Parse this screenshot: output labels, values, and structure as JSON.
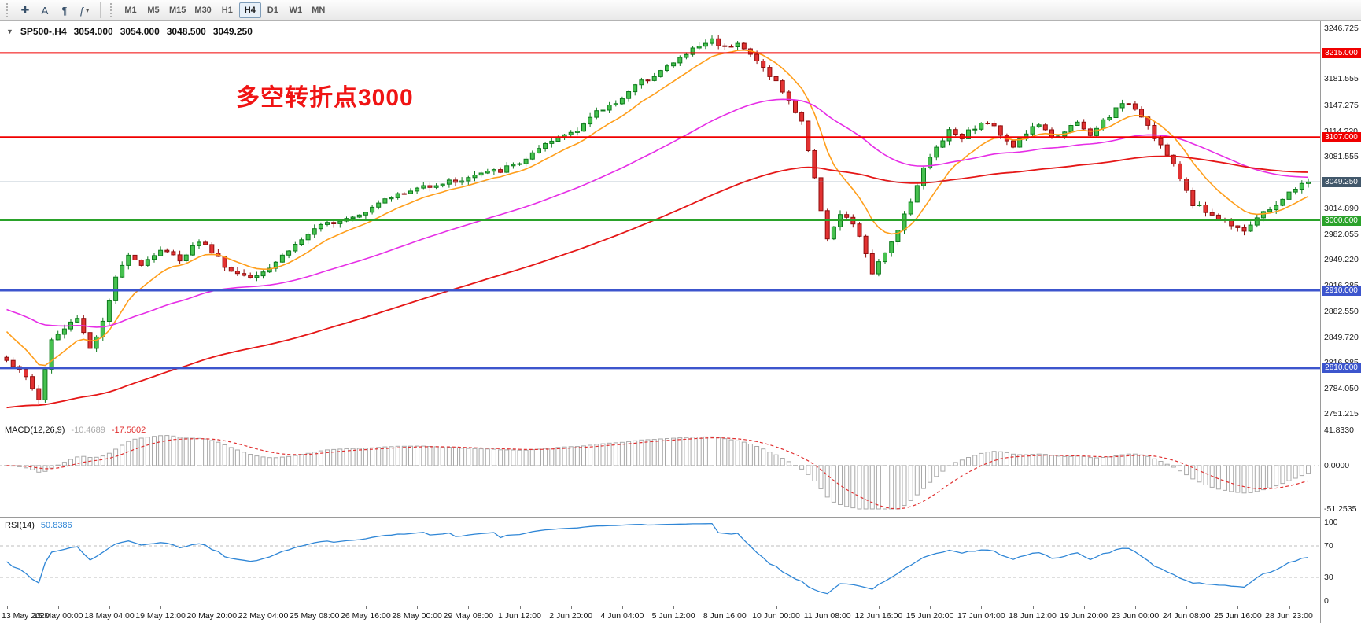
{
  "toolbar": {
    "tools": [
      {
        "name": "crosshair-tool",
        "glyph": "✚",
        "dropdown": false
      },
      {
        "name": "text-tool",
        "glyph": "A",
        "dropdown": false
      },
      {
        "name": "text-label-tool",
        "glyph": "¶",
        "dropdown": false
      },
      {
        "name": "indicators-tool",
        "glyph": "ƒ",
        "dropdown": true
      }
    ],
    "dropdown_glyph": "▾",
    "timeframes": [
      "M1",
      "M5",
      "M15",
      "M30",
      "H1",
      "H4",
      "D1",
      "W1",
      "MN"
    ],
    "active_timeframe": "H4"
  },
  "chart": {
    "symbol_header": {
      "icon": "▼",
      "symbol": "SP500-,H4",
      "open": "3054.000",
      "high": "3054.000",
      "low": "3048.500",
      "close": "3049.250"
    },
    "annotation": {
      "text": "多空转折点3000",
      "color": "#f01414"
    },
    "price_axis": {
      "min": 2751.215,
      "max": 3246.725,
      "labels": [
        {
          "text": "3246.725",
          "value": 3246.725
        },
        {
          "text": "3181.555",
          "value": 3181.555
        },
        {
          "text": "3147.275",
          "value": 3147.275
        },
        {
          "text": "3114.220",
          "value": 3114.22
        },
        {
          "text": "3081.555",
          "value": 3081.555
        },
        {
          "text": "3014.890",
          "value": 3014.89
        },
        {
          "text": "2982.055",
          "value": 2982.055
        },
        {
          "text": "2949.220",
          "value": 2949.22
        },
        {
          "text": "2916.385",
          "value": 2916.385
        },
        {
          "text": "2882.550",
          "value": 2882.55
        },
        {
          "text": "2849.720",
          "value": 2849.72
        },
        {
          "text": "2816.885",
          "value": 2816.885
        },
        {
          "text": "2784.050",
          "value": 2784.05
        },
        {
          "text": "2751.215",
          "value": 2751.215
        }
      ]
    },
    "levels": [
      {
        "label": "3215.000",
        "value": 3215.0,
        "color": "#f00000",
        "width": 2
      },
      {
        "label": "3107.000",
        "value": 3107.0,
        "color": "#f00000",
        "width": 2
      },
      {
        "label": "3000.000",
        "value": 3000.0,
        "color": "#2aa22a",
        "width": 2
      },
      {
        "label": "2910.000",
        "value": 2910.0,
        "color": "#3c55cd",
        "width": 3
      },
      {
        "label": "2810.000",
        "value": 2810.0,
        "color": "#3c55cd",
        "width": 3
      }
    ],
    "current_price": {
      "label": "3049.250",
      "value": 3049.25,
      "line_color": "#7e95a8",
      "badge_color": "#42586b"
    },
    "candles": {
      "count": 204,
      "noise": 7,
      "last_close": 3049.25,
      "up_fill": "#46c14f",
      "up_border": "#0d7a1c",
      "down_fill": "#e23232",
      "down_border": "#8f0e0e"
    },
    "price_path": [
      [
        0,
        2822
      ],
      [
        3,
        2798
      ],
      [
        5,
        2770
      ],
      [
        7,
        2846
      ],
      [
        9,
        2860
      ],
      [
        11,
        2876
      ],
      [
        13,
        2836
      ],
      [
        15,
        2868
      ],
      [
        17,
        2924
      ],
      [
        19,
        2958
      ],
      [
        21,
        2944
      ],
      [
        24,
        2962
      ],
      [
        27,
        2950
      ],
      [
        30,
        2974
      ],
      [
        32,
        2960
      ],
      [
        35,
        2934
      ],
      [
        38,
        2928
      ],
      [
        41,
        2940
      ],
      [
        44,
        2962
      ],
      [
        47,
        2982
      ],
      [
        50,
        2996
      ],
      [
        53,
        3004
      ],
      [
        56,
        3012
      ],
      [
        59,
        3030
      ],
      [
        62,
        3034
      ],
      [
        65,
        3044
      ],
      [
        68,
        3048
      ],
      [
        71,
        3052
      ],
      [
        74,
        3060
      ],
      [
        77,
        3064
      ],
      [
        80,
        3074
      ],
      [
        83,
        3090
      ],
      [
        86,
        3106
      ],
      [
        89,
        3118
      ],
      [
        92,
        3138
      ],
      [
        95,
        3152
      ],
      [
        98,
        3172
      ],
      [
        101,
        3188
      ],
      [
        104,
        3202
      ],
      [
        107,
        3220
      ],
      [
        110,
        3232
      ],
      [
        112,
        3222
      ],
      [
        114,
        3230
      ],
      [
        116,
        3212
      ],
      [
        118,
        3196
      ],
      [
        120,
        3178
      ],
      [
        122,
        3152
      ],
      [
        124,
        3128
      ],
      [
        126,
        3052
      ],
      [
        128,
        2978
      ],
      [
        130,
        3006
      ],
      [
        132,
        2996
      ],
      [
        134,
        2958
      ],
      [
        135,
        2932
      ],
      [
        137,
        2956
      ],
      [
        139,
        2990
      ],
      [
        141,
        3026
      ],
      [
        143,
        3066
      ],
      [
        145,
        3094
      ],
      [
        147,
        3116
      ],
      [
        149,
        3108
      ],
      [
        151,
        3120
      ],
      [
        153,
        3126
      ],
      [
        155,
        3112
      ],
      [
        157,
        3096
      ],
      [
        159,
        3112
      ],
      [
        161,
        3124
      ],
      [
        163,
        3104
      ],
      [
        165,
        3116
      ],
      [
        167,
        3124
      ],
      [
        169,
        3108
      ],
      [
        171,
        3128
      ],
      [
        173,
        3142
      ],
      [
        175,
        3152
      ],
      [
        177,
        3136
      ],
      [
        179,
        3108
      ],
      [
        181,
        3084
      ],
      [
        183,
        3054
      ],
      [
        185,
        3022
      ],
      [
        187,
        3012
      ],
      [
        189,
        3002
      ],
      [
        191,
        2996
      ],
      [
        193,
        2988
      ],
      [
        195,
        3002
      ],
      [
        197,
        3014
      ],
      [
        199,
        3028
      ],
      [
        201,
        3040
      ],
      [
        203,
        3049.25
      ]
    ],
    "moving_averages": [
      {
        "name": "ma-fast-orange",
        "period": 10,
        "init": 2865,
        "color": "#ff9e1b",
        "width": 1.6
      },
      {
        "name": "ma-mid-magenta",
        "period": 48,
        "init": 2888,
        "color": "#e62ee6",
        "width": 1.6
      },
      {
        "name": "ma-slow-red",
        "period": 110,
        "init": 2758,
        "color": "#e51717",
        "width": 1.8
      }
    ]
  },
  "macd": {
    "name": "MACD(12,26,9)",
    "value_main": "-10.4689",
    "value_signal": "-17.5602",
    "axis": [
      {
        "text": "41.8330",
        "value": 41.833
      },
      {
        "text": "0.0000",
        "value": 0
      },
      {
        "text": "-51.2535",
        "value": -51.2535
      }
    ],
    "range_min": -51.2535,
    "range_max": 41.833,
    "histogram_color": "#a9a9a9",
    "signal_color": "#e03030"
  },
  "rsi": {
    "name": "RSI(14)",
    "value": "50.8386",
    "period": 14,
    "axis": [
      {
        "text": "100",
        "value": 100
      },
      {
        "text": "70",
        "value": 70
      },
      {
        "text": "30",
        "value": 30
      },
      {
        "text": "0",
        "value": 0
      }
    ],
    "levels": [
      70,
      30
    ],
    "line_color": "#2f86d6"
  },
  "time_axis": {
    "bars_per_label": 8,
    "labels": [
      "13 May 2020",
      "15 May 00:00",
      "18 May 04:00",
      "19 May 12:00",
      "20 May 20:00",
      "22 May 04:00",
      "25 May 08:00",
      "26 May 16:00",
      "28 May 00:00",
      "29 May 08:00",
      "1 Jun 12:00",
      "2 Jun 20:00",
      "4 Jun 04:00",
      "5 Jun 12:00",
      "8 Jun 16:00",
      "10 Jun 00:00",
      "11 Jun 08:00",
      "12 Jun 16:00",
      "15 Jun 20:00",
      "17 Jun 04:00",
      "18 Jun 12:00",
      "19 Jun 20:00",
      "23 Jun 00:00",
      "24 Jun 08:00",
      "25 Jun 16:00",
      "28 Jun 23:00"
    ]
  }
}
